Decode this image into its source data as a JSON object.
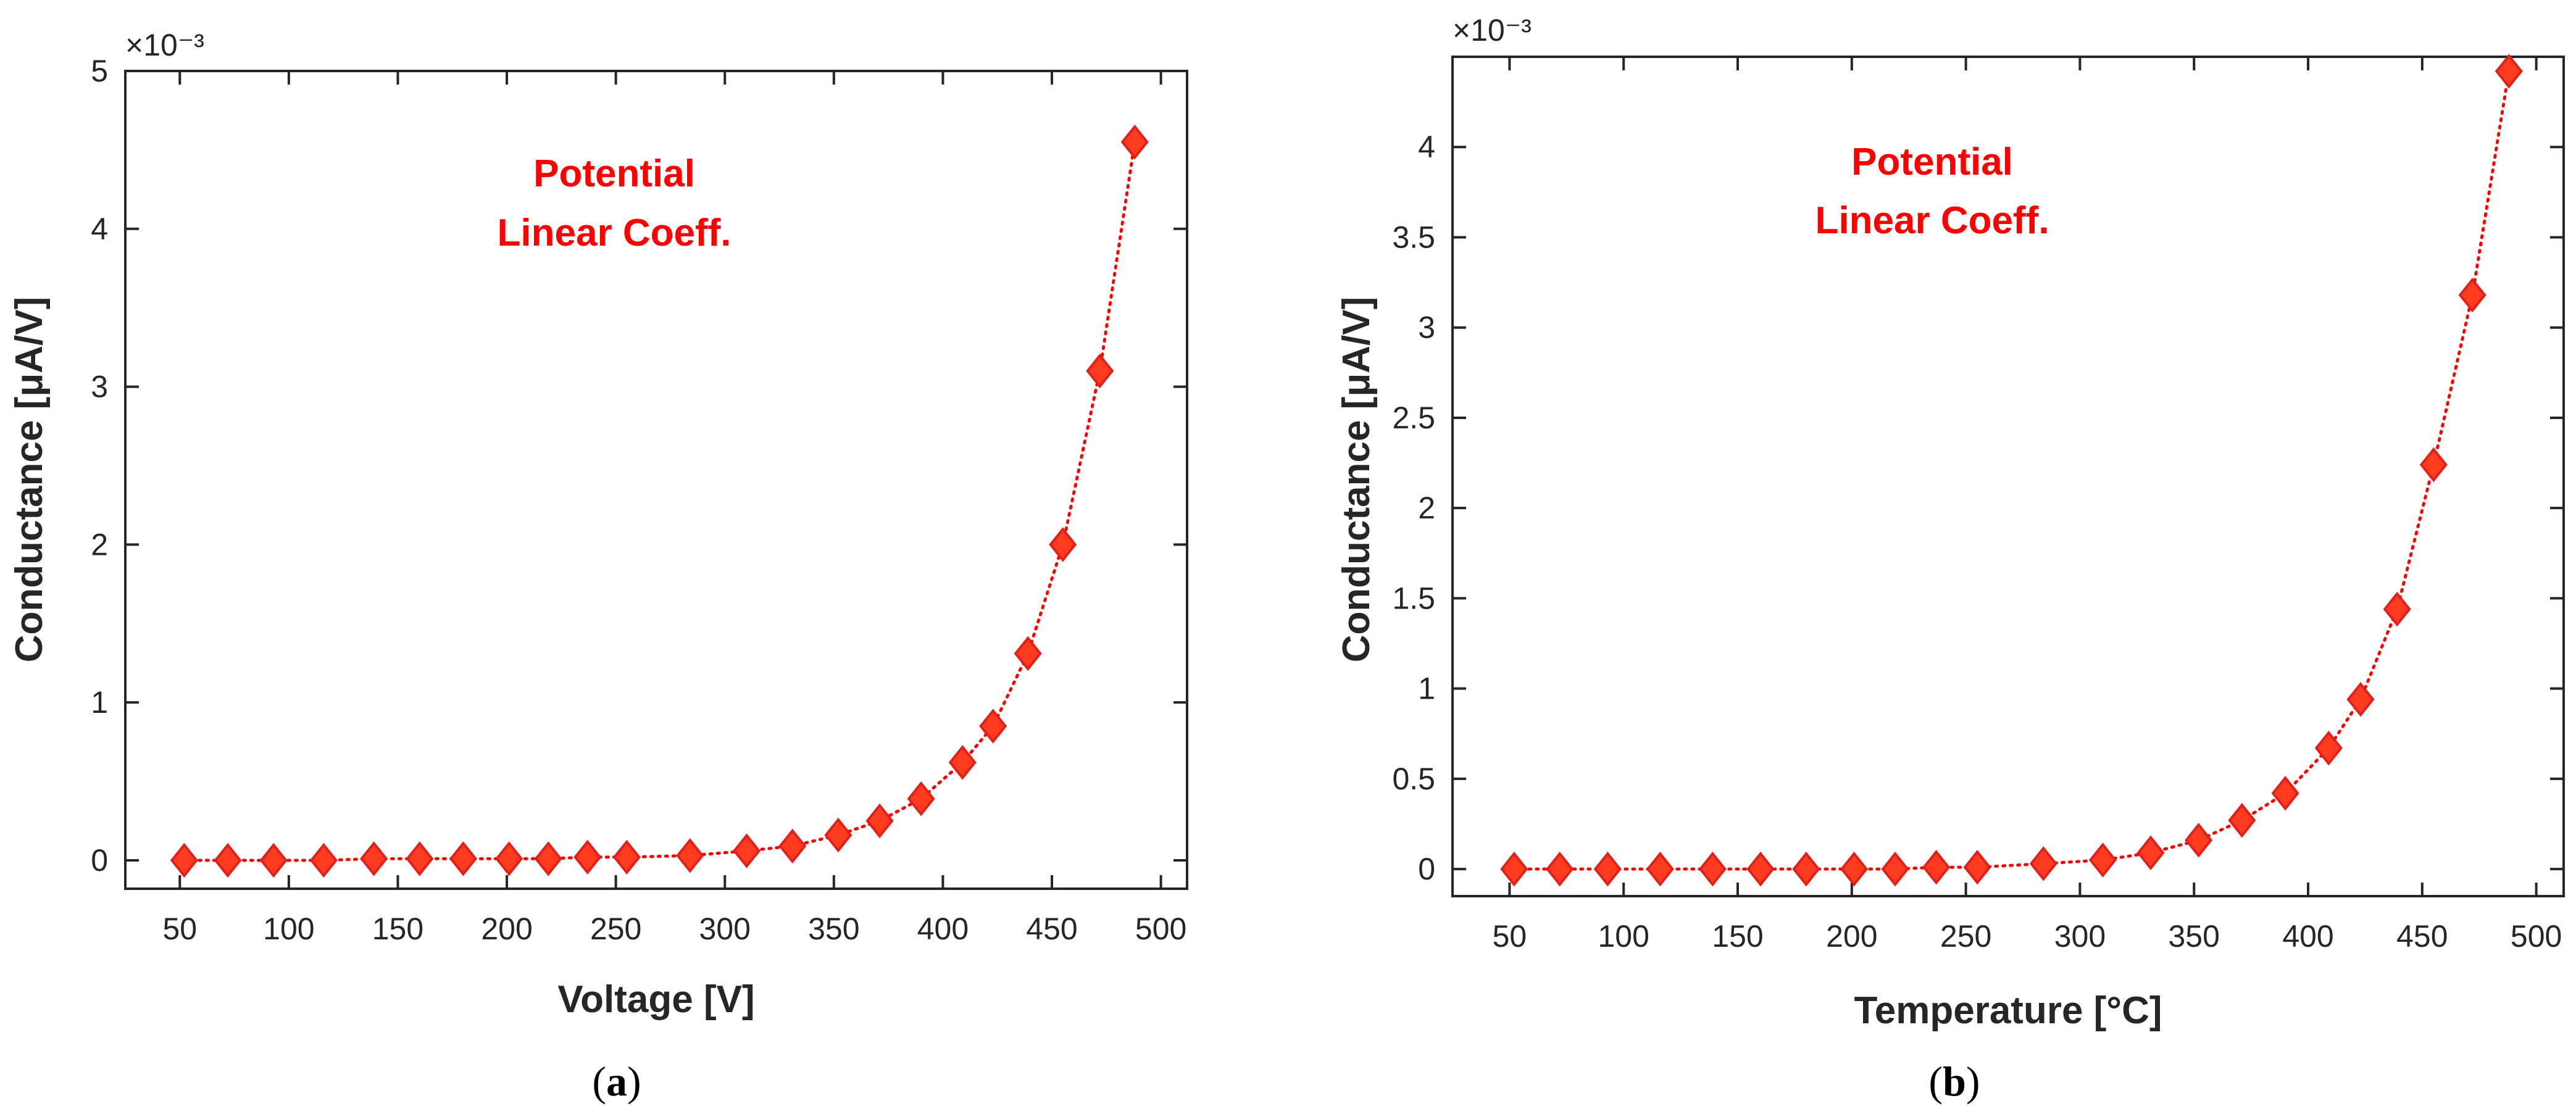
{
  "colors": {
    "marker_fill": "#ff3b1f",
    "marker_stroke": "#e0201a",
    "line": "#ff0000",
    "annotation": "#ff0000",
    "axis": "#262626"
  },
  "chart_data": [
    {
      "type": "line",
      "panel_label": "a",
      "xlabel": "Voltage [V]",
      "ylabel": "Conductance [μA/V]",
      "y_multiplier": "×10⁻³",
      "annotation": [
        "Potential",
        "Linear Coeff."
      ],
      "xlim": [
        25,
        512
      ],
      "ylim": [
        -0.18,
        5.0
      ],
      "xticks": [
        50,
        100,
        150,
        200,
        250,
        300,
        350,
        400,
        450,
        500
      ],
      "yticks": [
        0,
        1,
        2,
        3,
        4,
        5
      ],
      "ytick_labels": [
        "0",
        "1",
        "2",
        "3",
        "4",
        "5"
      ],
      "series": [
        {
          "name": "Conductance",
          "x": [
            52,
            72,
            93,
            116,
            139,
            160,
            180,
            201,
            219,
            237,
            255,
            284,
            310,
            331,
            352,
            371,
            390,
            409,
            423,
            439,
            455,
            472,
            488
          ],
          "y": [
            0.0,
            0.0,
            0.0,
            0.0,
            0.01,
            0.01,
            0.01,
            0.01,
            0.01,
            0.02,
            0.02,
            0.03,
            0.06,
            0.09,
            0.16,
            0.25,
            0.39,
            0.62,
            0.85,
            1.31,
            2.0,
            3.1,
            4.55
          ]
        }
      ]
    },
    {
      "type": "line",
      "panel_label": "b",
      "xlabel": "Temperature [°C]",
      "ylabel": "Conductance [μA/V]",
      "y_multiplier": "×10⁻³",
      "annotation": [
        "Potential",
        "Linear Coeff."
      ],
      "xlim": [
        25,
        512
      ],
      "ylim": [
        -0.15,
        4.5
      ],
      "xticks": [
        50,
        100,
        150,
        200,
        250,
        300,
        350,
        400,
        450,
        500
      ],
      "yticks": [
        0,
        0.5,
        1,
        1.5,
        2,
        2.5,
        3,
        3.5,
        4
      ],
      "ytick_labels": [
        "0",
        "0.5",
        "1",
        "1.5",
        "2",
        "2.5",
        "3",
        "3.5",
        "4"
      ],
      "series": [
        {
          "name": "Conductance",
          "x": [
            52,
            72,
            93,
            116,
            139,
            160,
            180,
            201,
            219,
            237,
            255,
            284,
            310,
            331,
            352,
            371,
            390,
            409,
            423,
            439,
            455,
            472,
            488
          ],
          "y": [
            0.0,
            0.0,
            0.0,
            0.0,
            0.0,
            0.0,
            0.0,
            0.0,
            0.0,
            0.01,
            0.01,
            0.03,
            0.05,
            0.09,
            0.16,
            0.27,
            0.42,
            0.67,
            0.94,
            1.44,
            2.24,
            3.18,
            4.42
          ]
        }
      ]
    }
  ]
}
